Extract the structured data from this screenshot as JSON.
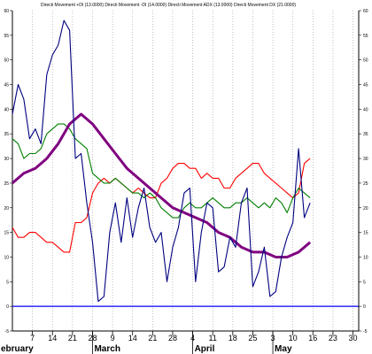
{
  "chart_data": {
    "type": "line",
    "title": "Directi Movement +DI (13.0000) Directi Movement -DI (14.0000) Directi Movement ADX (13.0000) Directi Movement DX (21.0000)",
    "xlabel": "",
    "ylabel": "",
    "ylim": [
      -5,
      60
    ],
    "y_ticks": [
      -5,
      0,
      5,
      10,
      15,
      20,
      25,
      30,
      35,
      40,
      45,
      50,
      55,
      60
    ],
    "y_tick_labels": [
      "-5",
      "0",
      "5",
      "10",
      "15",
      "20",
      "25",
      "30",
      "35",
      "40",
      "45",
      "50",
      "55",
      "60"
    ],
    "zero_line": 0,
    "grid": true,
    "x_ticks": [
      {
        "day": 7,
        "label": "7"
      },
      {
        "day": 14,
        "label": "14"
      },
      {
        "day": 21,
        "label": "21"
      },
      {
        "day": 28,
        "label": "28"
      },
      {
        "day": 35,
        "label": "9"
      },
      {
        "day": 42,
        "label": "14"
      },
      {
        "day": 49,
        "label": "21"
      },
      {
        "day": 56,
        "label": "28"
      },
      {
        "day": 63,
        "label": "4"
      },
      {
        "day": 70,
        "label": "11"
      },
      {
        "day": 77,
        "label": "18"
      },
      {
        "day": 84,
        "label": "25"
      },
      {
        "day": 91,
        "label": "3"
      },
      {
        "day": 98,
        "label": "10"
      },
      {
        "day": 105,
        "label": "16"
      },
      {
        "day": 112,
        "label": "23"
      },
      {
        "day": 119,
        "label": "30"
      }
    ],
    "months": [
      {
        "day": 0,
        "label": "ebruary"
      },
      {
        "day": 28,
        "label": "March"
      },
      {
        "day": 63,
        "label": "April"
      },
      {
        "day": 91,
        "label": "May"
      }
    ],
    "x_range": [
      0,
      121
    ],
    "series": [
      {
        "color": "#ff0000",
        "x": [
          0,
          2,
          4,
          6,
          8,
          10,
          12,
          14,
          16,
          18,
          20,
          22,
          24,
          26,
          28,
          30,
          32,
          34,
          36,
          38,
          40,
          42,
          44,
          46,
          48,
          50,
          52,
          54,
          56,
          58,
          60,
          62,
          64,
          66,
          68,
          70,
          72,
          74,
          76,
          78,
          80,
          82,
          84,
          86,
          88,
          90,
          92,
          94,
          96,
          98,
          100,
          102,
          104
        ],
        "y": [
          16,
          14,
          14,
          15,
          15,
          14,
          13,
          13,
          12,
          11,
          11,
          17,
          17,
          18,
          23,
          25,
          26,
          25,
          26,
          25,
          24,
          23,
          24,
          23,
          22,
          22,
          25,
          26,
          28,
          29,
          29,
          28,
          28,
          26,
          27,
          26,
          26,
          24,
          24,
          26,
          27,
          28,
          29,
          29,
          27,
          26,
          25,
          24,
          23,
          22,
          23,
          29,
          30
        ]
      },
      {
        "color": "#008000",
        "x": [
          0,
          2,
          4,
          6,
          8,
          10,
          12,
          14,
          16,
          18,
          20,
          22,
          24,
          26,
          28,
          30,
          32,
          34,
          36,
          38,
          40,
          42,
          44,
          46,
          48,
          50,
          52,
          54,
          56,
          58,
          60,
          62,
          64,
          66,
          68,
          70,
          72,
          74,
          76,
          78,
          80,
          82,
          84,
          86,
          88,
          90,
          92,
          94,
          96,
          98,
          100,
          102,
          104
        ],
        "y": [
          34,
          33,
          30,
          31,
          31,
          32,
          35,
          36,
          37,
          37,
          36,
          34,
          33,
          32,
          27,
          26,
          25,
          25,
          26,
          25,
          24,
          23,
          23,
          22,
          23,
          22,
          20,
          19,
          18,
          18,
          20,
          21,
          20,
          20,
          21,
          22,
          21,
          20,
          20,
          21,
          21,
          22,
          21,
          20,
          21,
          20,
          22,
          21,
          19,
          22,
          24,
          23,
          22
        ]
      },
      {
        "color": "#800080",
        "x": [
          0,
          4,
          8,
          12,
          16,
          20,
          24,
          28,
          32,
          36,
          40,
          44,
          48,
          52,
          56,
          60,
          64,
          68,
          72,
          76,
          80,
          84,
          88,
          92,
          96,
          100,
          104
        ],
        "y": [
          25,
          27,
          28,
          30,
          33,
          37,
          39,
          37,
          34,
          31,
          28,
          26,
          24,
          22,
          20,
          19,
          18,
          17,
          15,
          14,
          12,
          11,
          11,
          10,
          10,
          11,
          13
        ]
      },
      {
        "color": "#000080",
        "x": [
          0,
          2,
          4,
          6,
          8,
          10,
          12,
          14,
          16,
          18,
          20,
          22,
          24,
          26,
          28,
          30,
          32,
          34,
          36,
          38,
          40,
          42,
          44,
          46,
          48,
          50,
          52,
          54,
          56,
          58,
          60,
          62,
          64,
          66,
          68,
          70,
          72,
          74,
          76,
          78,
          80,
          82,
          84,
          86,
          88,
          90,
          92,
          94,
          96,
          98,
          100,
          102,
          104
        ],
        "y": [
          39,
          45,
          42,
          34,
          36,
          33,
          47,
          51,
          53,
          58,
          56,
          30,
          31,
          21,
          13,
          1,
          2,
          15,
          21,
          13,
          22,
          14,
          20,
          24,
          16,
          13,
          15,
          5,
          12,
          16,
          23,
          24,
          5,
          15,
          21,
          20,
          7,
          8,
          14,
          12,
          21,
          24,
          4,
          7,
          12,
          2,
          3,
          10,
          14,
          17,
          32,
          18,
          21
        ]
      }
    ]
  }
}
